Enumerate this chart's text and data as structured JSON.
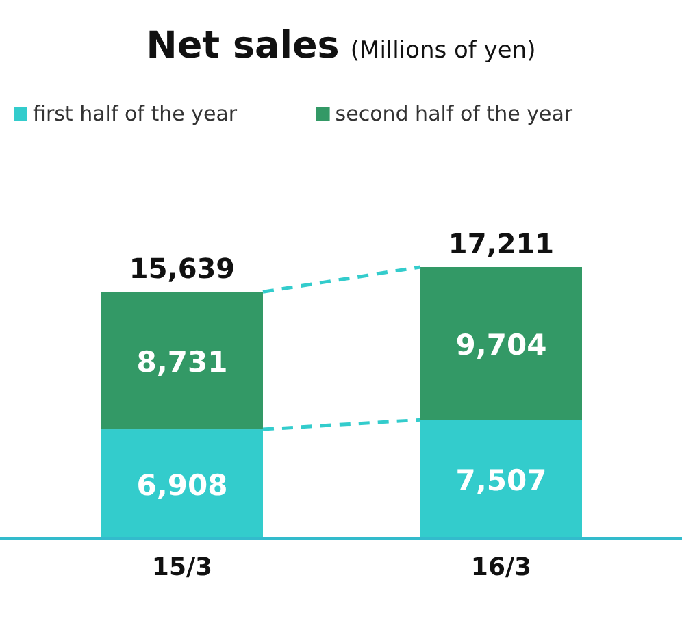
{
  "chart_data": {
    "type": "bar",
    "title": "Net sales",
    "subtitle": "(Millions of yen)",
    "categories": [
      "15/3",
      "16/3"
    ],
    "stacked": true,
    "legend": "top left",
    "series": [
      {
        "name": "first half of the year",
        "color": "#33cccc",
        "values": [
          6908,
          7507
        ],
        "value_labels": [
          "6,908",
          "7,507"
        ]
      },
      {
        "name": "second half of the year",
        "color": "#339966",
        "values": [
          8731,
          9704
        ],
        "value_labels": [
          "8,731",
          "9,704"
        ]
      }
    ],
    "totals": [
      "15,639",
      "17,211"
    ]
  }
}
